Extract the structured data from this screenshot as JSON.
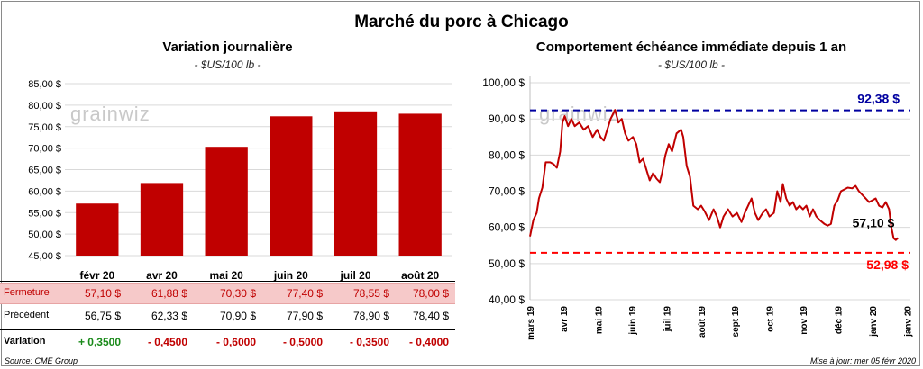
{
  "header": {
    "title": "Marché du porc à Chicago"
  },
  "watermark": "grainwiz",
  "left_panel": {
    "subtitle": "Variation journalière",
    "unit": "- $US/100 lb -"
  },
  "right_panel": {
    "subtitle": "Comportement échéance immédiate depuis 1 an",
    "unit": "- $US/100 lb -"
  },
  "table": {
    "rows": [
      {
        "label": "Fermeture",
        "values": [
          "57,10 $",
          "61,88 $",
          "70,30 $",
          "77,40 $",
          "78,55 $",
          "78,00 $"
        ]
      },
      {
        "label": "Précédent",
        "values": [
          "56,75 $",
          "62,33 $",
          "70,90 $",
          "77,90 $",
          "78,90 $",
          "78,40 $"
        ]
      },
      {
        "label": "Variation",
        "values": [
          "+ 0,3500",
          "- 0,4500",
          "- 0,6000",
          "- 0,5000",
          "- 0,3500",
          "- 0,4000"
        ]
      }
    ]
  },
  "footer": {
    "source": "Source: CME Group",
    "updated": "Mise à jour: mer 05 févr 2020"
  },
  "colors": {
    "bar": "#c00000",
    "line": "#c00000",
    "high_line": "#0000a0",
    "low_line": "#ff0000"
  },
  "chart_data": [
    {
      "type": "bar",
      "categories": [
        "févr 20",
        "avr 20",
        "mai 20",
        "juin 20",
        "juil 20",
        "août 20"
      ],
      "values": [
        57.1,
        61.88,
        70.3,
        77.4,
        78.55,
        78.0
      ],
      "ylim": [
        45,
        85
      ],
      "yticks": [
        "45,00 $",
        "50,00 $",
        "55,00 $",
        "60,00 $",
        "65,00 $",
        "70,00 $",
        "75,00 $",
        "80,00 $",
        "85,00 $"
      ],
      "ytick_values": [
        45,
        50,
        55,
        60,
        65,
        70,
        75,
        80,
        85
      ],
      "grid": true
    },
    {
      "type": "line",
      "xticks": [
        "mars 19",
        "avr 19",
        "mai 19",
        "juin 19",
        "juil 19",
        "août 19",
        "sept 19",
        "oct 19",
        "nov 19",
        "déc 19",
        "janv 20",
        "janv 20"
      ],
      "xtick_positions": [
        0,
        30,
        61,
        91,
        122,
        153,
        183,
        214,
        244,
        275,
        306,
        337
      ],
      "yticks": [
        "40,00 $",
        "50,00 $",
        "60,00 $",
        "70,00 $",
        "80,00 $",
        "90,00 $",
        "100,00 $"
      ],
      "ytick_values": [
        40,
        50,
        60,
        70,
        80,
        90,
        100
      ],
      "ylim": [
        40,
        102
      ],
      "xlim": [
        0,
        340
      ],
      "grid": true,
      "max_value": 92.38,
      "max_label": "92,38 $",
      "min_value": 52.98,
      "min_label": "52,98 $",
      "last_label": "57,10 $",
      "points": [
        [
          0,
          57.5
        ],
        [
          3,
          62
        ],
        [
          6,
          64
        ],
        [
          8,
          68
        ],
        [
          11,
          71
        ],
        [
          14,
          78
        ],
        [
          18,
          78
        ],
        [
          21,
          77.5
        ],
        [
          24,
          76.5
        ],
        [
          27,
          81
        ],
        [
          29,
          89
        ],
        [
          31,
          90.8
        ],
        [
          34,
          88
        ],
        [
          37,
          90
        ],
        [
          40,
          88
        ],
        [
          44,
          89
        ],
        [
          48,
          87
        ],
        [
          52,
          88
        ],
        [
          56,
          85
        ],
        [
          60,
          87
        ],
        [
          63,
          85
        ],
        [
          66,
          84
        ],
        [
          68,
          86
        ],
        [
          72,
          90
        ],
        [
          76,
          92.5
        ],
        [
          79,
          89
        ],
        [
          82,
          90
        ],
        [
          85,
          86
        ],
        [
          88,
          84
        ],
        [
          92,
          85
        ],
        [
          95,
          83
        ],
        [
          98,
          78
        ],
        [
          101,
          79
        ],
        [
          104,
          76
        ],
        [
          107,
          73
        ],
        [
          110,
          75
        ],
        [
          113,
          73.5
        ],
        [
          116,
          72.5
        ],
        [
          118,
          75
        ],
        [
          121,
          80
        ],
        [
          124,
          83
        ],
        [
          127,
          81
        ],
        [
          131,
          86
        ],
        [
          135,
          87
        ],
        [
          137,
          85
        ],
        [
          140,
          77
        ],
        [
          143,
          74
        ],
        [
          146,
          66
        ],
        [
          150,
          65
        ],
        [
          153,
          66
        ],
        [
          156,
          64.5
        ],
        [
          160,
          62
        ],
        [
          164,
          65
        ],
        [
          167,
          63
        ],
        [
          170,
          60
        ],
        [
          173,
          63
        ],
        [
          177,
          65
        ],
        [
          181,
          63
        ],
        [
          185,
          64
        ],
        [
          189,
          61.5
        ],
        [
          192,
          64
        ],
        [
          195,
          66
        ],
        [
          198,
          68
        ],
        [
          201,
          64
        ],
        [
          204,
          62
        ],
        [
          208,
          64
        ],
        [
          211,
          65
        ],
        [
          214,
          63
        ],
        [
          218,
          64
        ],
        [
          221,
          70
        ],
        [
          224,
          67
        ],
        [
          226,
          72
        ],
        [
          229,
          68
        ],
        [
          232,
          66
        ],
        [
          235,
          67
        ],
        [
          238,
          65
        ],
        [
          241,
          66
        ],
        [
          244,
          65
        ],
        [
          247,
          66
        ],
        [
          250,
          63
        ],
        [
          253,
          65
        ],
        [
          256,
          63
        ],
        [
          259,
          62
        ],
        [
          263,
          61
        ],
        [
          266,
          60.5
        ],
        [
          269,
          61
        ],
        [
          272,
          66
        ],
        [
          275,
          67.5
        ],
        [
          278,
          70
        ],
        [
          281,
          70.5
        ],
        [
          284,
          71
        ],
        [
          288,
          70.8
        ],
        [
          291,
          71.5
        ],
        [
          294,
          70
        ],
        [
          297,
          69
        ],
        [
          300,
          68
        ],
        [
          303,
          67
        ],
        [
          306,
          67.5
        ],
        [
          309,
          68
        ],
        [
          312,
          66
        ],
        [
          315,
          65.5
        ],
        [
          318,
          67
        ],
        [
          321,
          65
        ],
        [
          323,
          60
        ],
        [
          325,
          57
        ],
        [
          327,
          56.5
        ],
        [
          329,
          57.1
        ]
      ]
    }
  ]
}
